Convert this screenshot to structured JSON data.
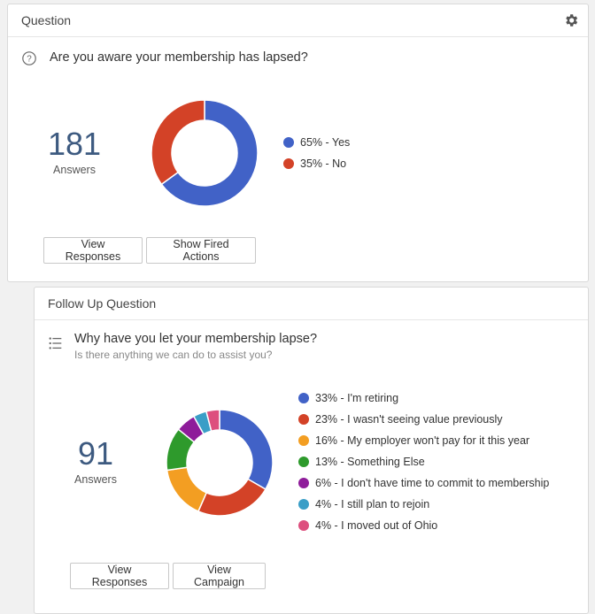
{
  "card1": {
    "title": "Question",
    "question": "Are you aware your membership has lapsed?",
    "count": "181",
    "count_label": "Answers",
    "buttons": {
      "view_responses": "View Responses",
      "show_fired_actions": "Show Fired Actions"
    },
    "icons": {
      "settings": "gear-icon",
      "question_type": "help-circle-icon"
    },
    "chart_data": {
      "type": "pie",
      "categories": [
        "65% - Yes",
        "35% - No"
      ],
      "values": [
        65,
        35
      ],
      "colors": [
        "#4162c7",
        "#d34227"
      ]
    }
  },
  "card2": {
    "title": "Follow Up Question",
    "question": "Why have you let your membership lapse?",
    "subtitle": "Is there anything we can do to assist you?",
    "count": "91",
    "count_label": "Answers",
    "buttons": {
      "view_responses": "View Responses",
      "view_campaign": "View Campaign"
    },
    "icons": {
      "question_type": "list-icon"
    },
    "chart_data": {
      "type": "pie",
      "categories": [
        "33% - I'm retiring",
        "23% - I wasn't seeing value previously",
        "16% - My employer won't pay for it this year",
        "13% - Something Else",
        "6% - I don't have time to commit to membership",
        "4% - I still plan to rejoin",
        "4% - I moved out of Ohio"
      ],
      "values": [
        33,
        23,
        16,
        13,
        6,
        4,
        4
      ],
      "colors": [
        "#4162c7",
        "#d34227",
        "#f39e22",
        "#2e9a2c",
        "#8e1c9a",
        "#3a9ec7",
        "#dd4f7e"
      ]
    }
  }
}
